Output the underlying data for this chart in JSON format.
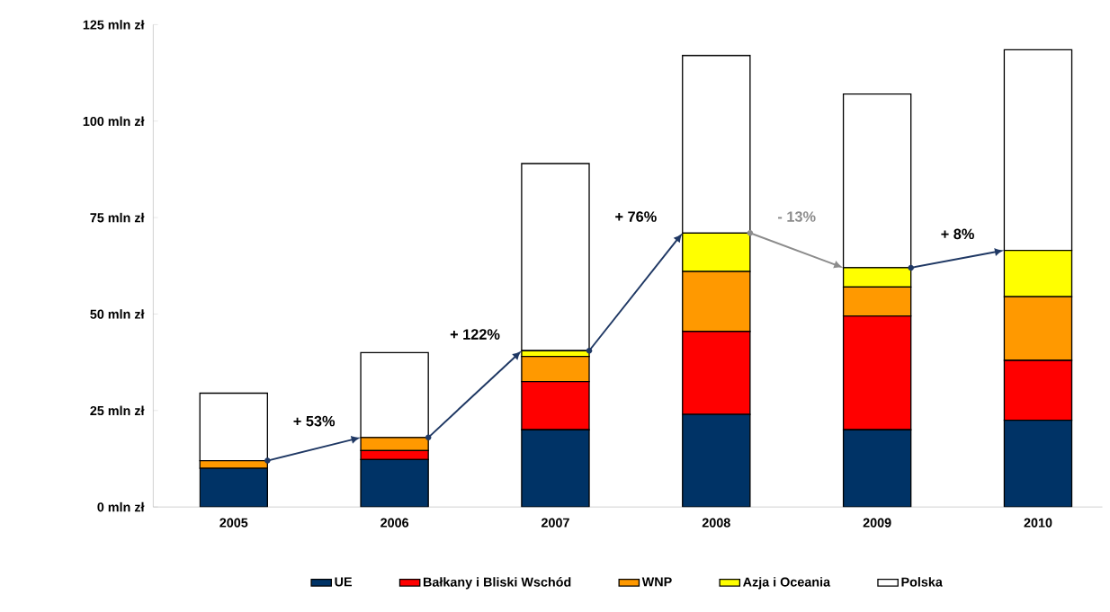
{
  "chart_data": {
    "type": "bar",
    "stacked": true,
    "categories": [
      "2005",
      "2006",
      "2007",
      "2008",
      "2009",
      "2010"
    ],
    "series": [
      {
        "name": "UE",
        "color": "#003366",
        "values": [
          10,
          12.3,
          20,
          24,
          20,
          22.5
        ]
      },
      {
        "name": "Bałkany i Bliski Wschód",
        "color": "#ff0000",
        "values": [
          0,
          2.3,
          12.5,
          21.5,
          29.5,
          15.5
        ]
      },
      {
        "name": "WNP",
        "color": "#ff9900",
        "values": [
          2,
          3.4,
          6.5,
          15.5,
          7.5,
          16.5
        ]
      },
      {
        "name": "Azja i Oceania",
        "color": "#ffff00",
        "values": [
          0,
          0,
          1.5,
          10,
          5,
          12
        ]
      },
      {
        "name": "Polska",
        "color": "#ffffff",
        "values": [
          17.5,
          22,
          48.5,
          46,
          45,
          52
        ]
      }
    ],
    "ylim": [
      0,
      125
    ],
    "yticks": [
      {
        "value": 0,
        "label": "0 mln zł"
      },
      {
        "value": 25,
        "label": "25 mln zł"
      },
      {
        "value": 50,
        "label": "50 mln zł"
      },
      {
        "value": 75,
        "label": "75 mln zł"
      },
      {
        "value": 100,
        "label": "100 mln zł"
      },
      {
        "value": 125,
        "label": "125 mln zł"
      }
    ],
    "legend": "bottom",
    "annotations": [
      "+ 53%",
      "+ 122%",
      "+ 76%",
      "- 13%",
      "+ 8%"
    ]
  }
}
